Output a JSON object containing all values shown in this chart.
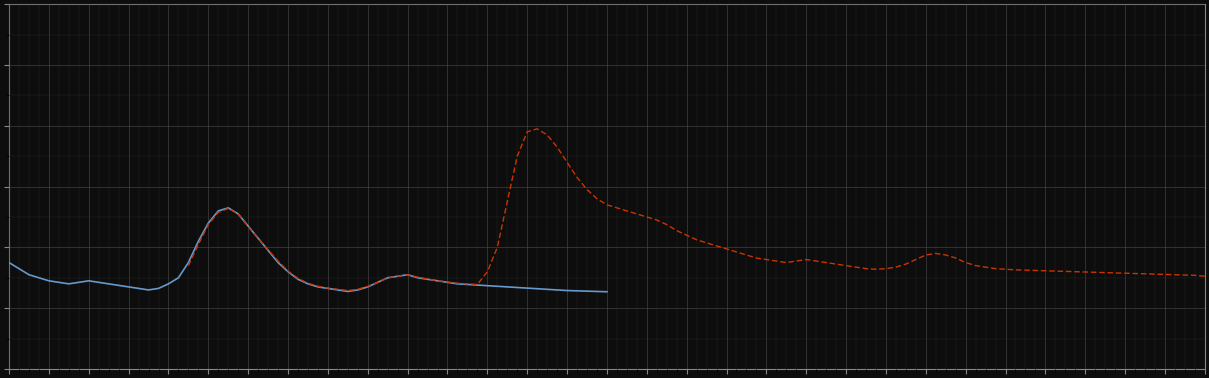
{
  "background_color": "#0d0d0d",
  "plot_bg_color": "#0d0d0d",
  "grid_color": "#555555",
  "line1_color": "#6699cc",
  "line2_color": "#cc3300",
  "xlim": [
    0,
    120
  ],
  "ylim": [
    -2,
    10
  ],
  "figsize": [
    12.09,
    3.78
  ],
  "dpi": 100,
  "n_points": 121,
  "blue_x": [
    0,
    1,
    2,
    3,
    4,
    5,
    6,
    7,
    8,
    9,
    10,
    11,
    12,
    13,
    14,
    15,
    16,
    17,
    18,
    19,
    20,
    21,
    22,
    23,
    24,
    25,
    26,
    27,
    28,
    29,
    30,
    31,
    32,
    33,
    34,
    35,
    36,
    37,
    38,
    39,
    40,
    41,
    42,
    43,
    44,
    45,
    46,
    47,
    48,
    49,
    50,
    51,
    52,
    53,
    54,
    55,
    56,
    57,
    58,
    59,
    60
  ],
  "blue_y": [
    1.5,
    1.3,
    1.1,
    1.0,
    0.9,
    0.85,
    0.8,
    0.85,
    0.9,
    0.85,
    0.8,
    0.75,
    0.7,
    0.65,
    0.6,
    0.65,
    0.8,
    1.0,
    1.5,
    2.2,
    2.8,
    3.2,
    3.3,
    3.1,
    2.7,
    2.3,
    1.9,
    1.5,
    1.2,
    0.95,
    0.8,
    0.7,
    0.65,
    0.6,
    0.55,
    0.6,
    0.7,
    0.85,
    1.0,
    1.05,
    1.1,
    1.0,
    0.95,
    0.9,
    0.85,
    0.8,
    0.78,
    0.76,
    0.74,
    0.72,
    0.7,
    0.68,
    0.66,
    0.64,
    0.62,
    0.6,
    0.58,
    0.57,
    0.56,
    0.55,
    0.54
  ],
  "red_x": [
    18,
    19,
    20,
    21,
    22,
    23,
    24,
    25,
    26,
    27,
    28,
    29,
    30,
    31,
    32,
    33,
    34,
    35,
    36,
    37,
    38,
    39,
    40,
    41,
    42,
    43,
    44,
    45,
    46,
    47,
    48,
    49,
    50,
    51,
    52,
    53,
    54,
    55,
    56,
    57,
    58,
    59,
    60,
    61,
    62,
    63,
    64,
    65,
    66,
    67,
    68,
    69,
    70,
    71,
    72,
    73,
    74,
    75,
    76,
    77,
    78,
    79,
    80,
    81,
    82,
    83,
    84,
    85,
    86,
    87,
    88,
    89,
    90,
    91,
    92,
    93,
    94,
    95,
    96,
    97,
    98,
    99,
    100,
    101,
    102,
    103,
    104,
    105,
    106,
    107,
    108,
    109,
    110,
    111,
    112,
    113,
    114,
    115,
    116,
    117,
    118,
    119,
    120
  ],
  "red_y": [
    1.4,
    2.1,
    2.75,
    3.15,
    3.28,
    3.1,
    2.68,
    2.3,
    1.92,
    1.55,
    1.22,
    0.98,
    0.82,
    0.72,
    0.66,
    0.62,
    0.58,
    0.62,
    0.72,
    0.85,
    1.0,
    1.05,
    1.1,
    1.02,
    0.96,
    0.9,
    0.86,
    0.82,
    0.8,
    0.78,
    1.2,
    2.0,
    3.5,
    5.0,
    5.8,
    5.9,
    5.7,
    5.3,
    4.8,
    4.3,
    3.9,
    3.6,
    3.4,
    3.3,
    3.2,
    3.1,
    3.0,
    2.9,
    2.75,
    2.55,
    2.4,
    2.25,
    2.15,
    2.05,
    1.95,
    1.85,
    1.75,
    1.65,
    1.6,
    1.55,
    1.5,
    1.55,
    1.6,
    1.55,
    1.5,
    1.45,
    1.4,
    1.35,
    1.3,
    1.28,
    1.3,
    1.35,
    1.45,
    1.6,
    1.75,
    1.8,
    1.75,
    1.65,
    1.5,
    1.4,
    1.35,
    1.3,
    1.28,
    1.26,
    1.25,
    1.24,
    1.23,
    1.22,
    1.21,
    1.2,
    1.19,
    1.18,
    1.17,
    1.16,
    1.15,
    1.14,
    1.13,
    1.12,
    1.11,
    1.1,
    1.09,
    1.08,
    1.05
  ]
}
